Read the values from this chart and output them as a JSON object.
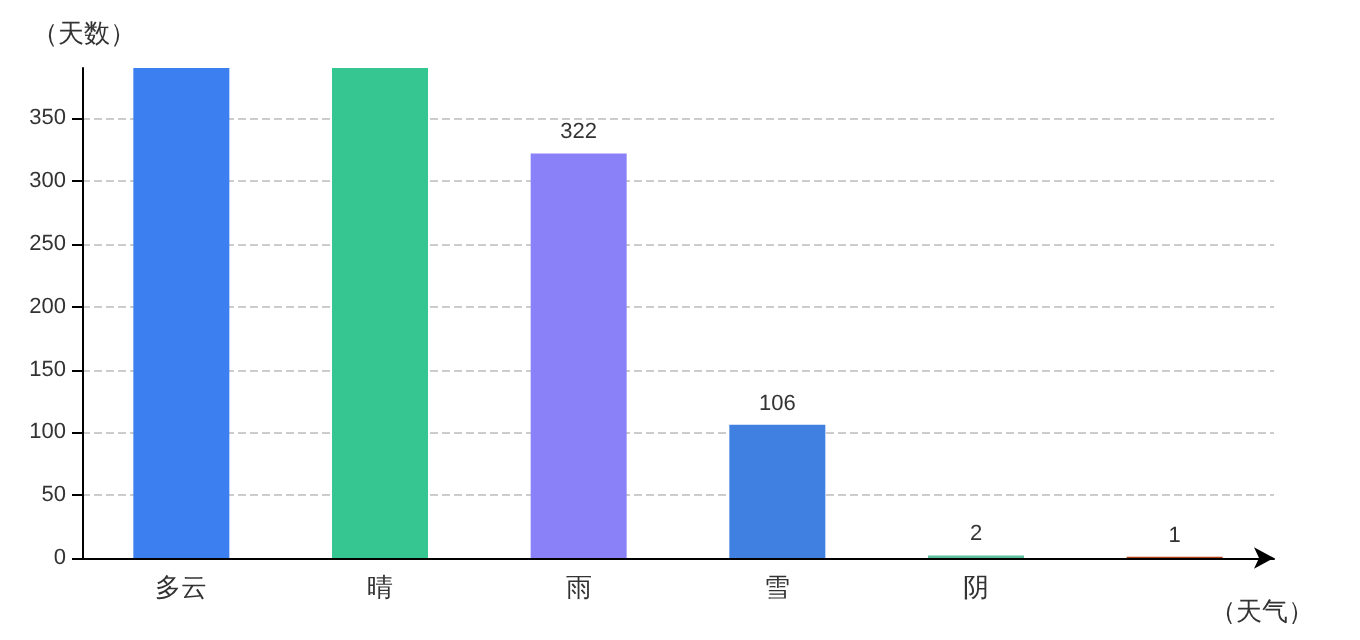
{
  "chart_data": {
    "type": "bar",
    "xlabel": "（天气）",
    "ylabel": "（天数）",
    "categories": [
      "多云",
      "晴",
      "雨",
      "雪",
      "阴",
      null
    ],
    "values": [
      390,
      390,
      322,
      106,
      2,
      1
    ],
    "value_labels": [
      null,
      null,
      "322",
      "106",
      "2",
      "1"
    ],
    "colors": [
      "#3b7ff0",
      "#36c692",
      "#8a80f8",
      "#4080e0",
      "#5fc0a0",
      "#b0401a"
    ],
    "ylim": [
      0,
      390
    ],
    "yticks": [
      0,
      50,
      100,
      150,
      200,
      250,
      300,
      350
    ],
    "grid": "y"
  }
}
